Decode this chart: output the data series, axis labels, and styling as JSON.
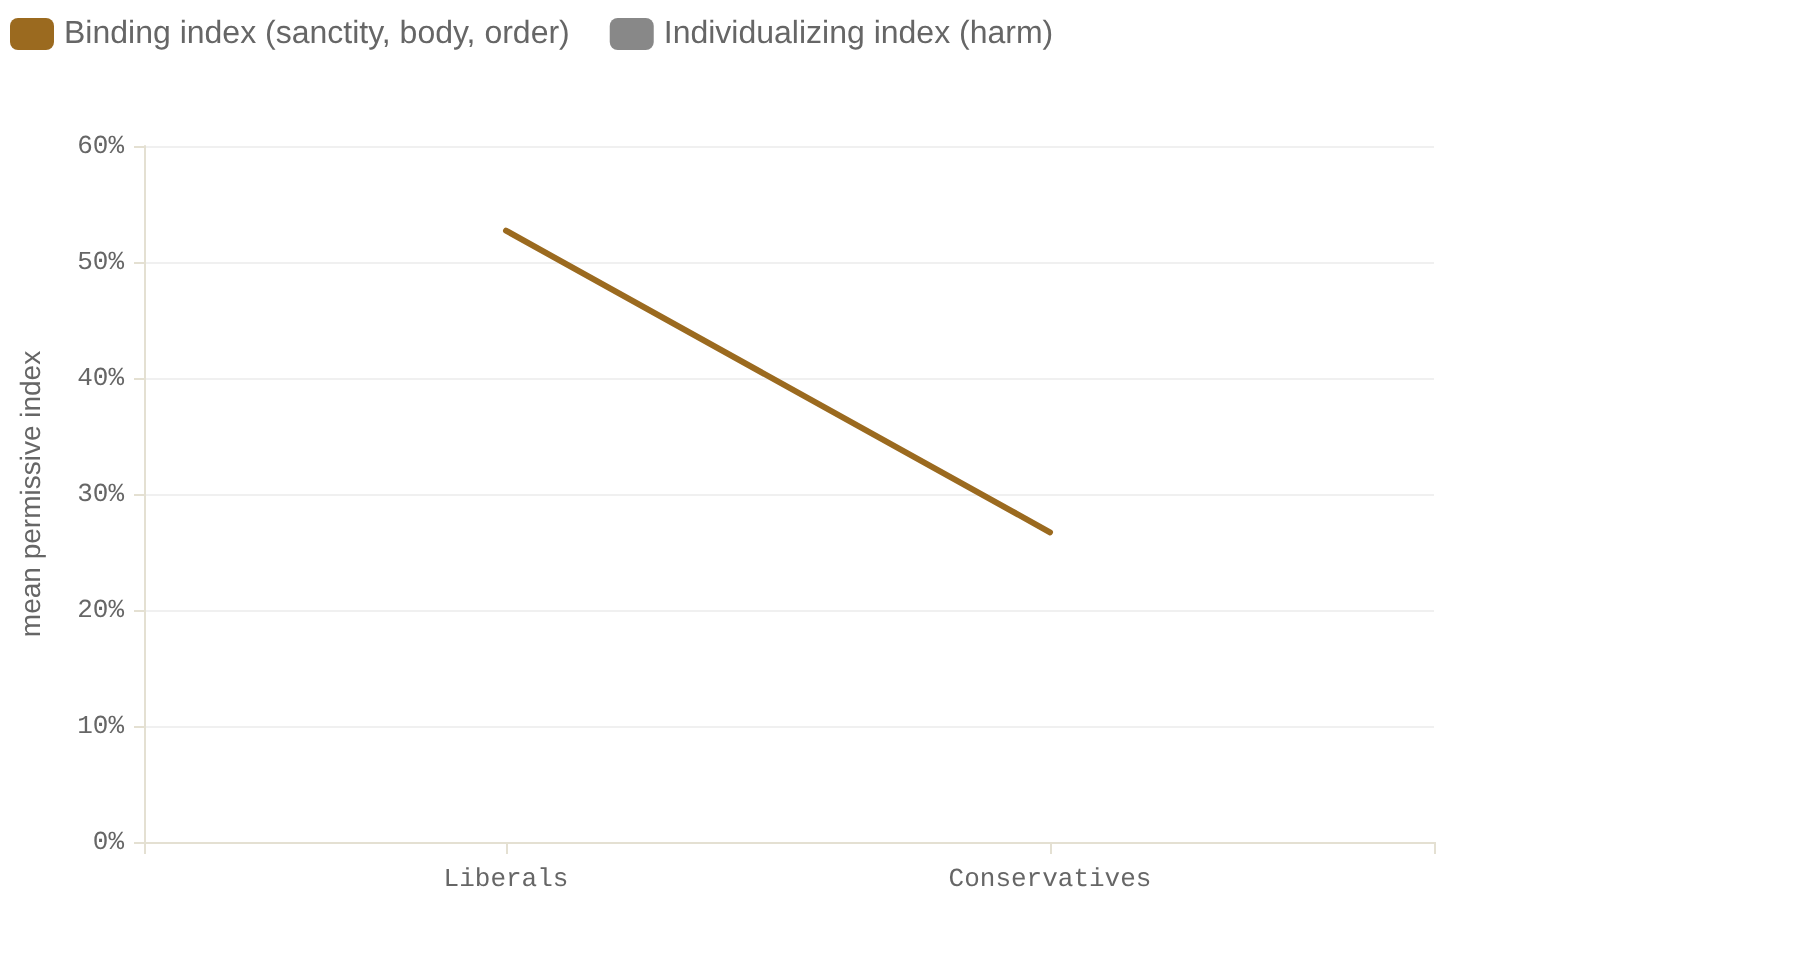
{
  "chart_data": {
    "type": "line",
    "categories": [
      "Liberals",
      "Conservatives"
    ],
    "series": [
      {
        "name": "Binding index (sanctity, body, order)",
        "color": "#9b6a1f",
        "values": [
          52.7,
          26.7
        ]
      },
      {
        "name": "Individualizing index (harm)",
        "color": "#888888",
        "values": [
          null,
          null
        ]
      }
    ],
    "ylabel": "mean permissive index",
    "ylim": [
      0,
      60
    ],
    "yticks": [
      {
        "value": 0,
        "label": "0%"
      },
      {
        "value": 10,
        "label": "10%"
      },
      {
        "value": 20,
        "label": "20%"
      },
      {
        "value": 30,
        "label": "30%"
      },
      {
        "value": 40,
        "label": "40%"
      },
      {
        "value": 50,
        "label": "50%"
      },
      {
        "value": 60,
        "label": "60%"
      }
    ],
    "grid": "y",
    "legend": "top left",
    "marker": "none"
  }
}
